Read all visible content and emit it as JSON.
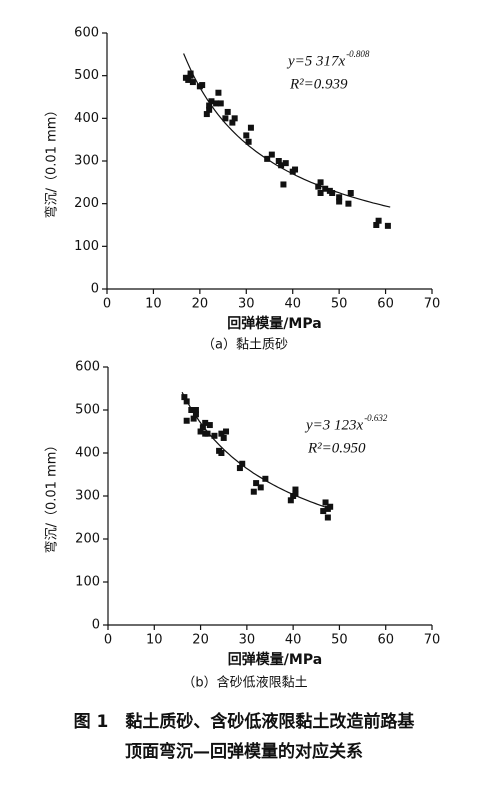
{
  "chart_data": [
    {
      "type": "scatter",
      "subtitle": "（a）黏土质砂",
      "xlabel": "回弹模量/MPa",
      "ylabel": "弯沉/（0.01 mm）",
      "xlim": [
        0,
        70
      ],
      "ylim": [
        0,
        600
      ],
      "xticks": [
        0,
        10,
        20,
        30,
        40,
        50,
        60,
        70
      ],
      "yticks": [
        0,
        100,
        200,
        300,
        400,
        500,
        600
      ],
      "color": "#111111",
      "x": [
        17,
        17.5,
        18,
        18,
        18.5,
        20,
        20.5,
        21.5,
        22,
        22,
        22.5,
        23.5,
        24,
        24.5,
        25.5,
        26,
        27,
        27.5,
        30,
        30.5,
        31,
        34.5,
        35.5,
        37,
        37.5,
        38,
        38.5,
        40,
        40.5,
        45.5,
        46,
        46,
        47,
        48,
        48.5,
        50,
        50,
        52,
        52.5,
        58,
        58.5,
        60.5
      ],
      "y": [
        495,
        490,
        500,
        505,
        485,
        475,
        478,
        410,
        420,
        430,
        440,
        435,
        460,
        435,
        400,
        415,
        390,
        400,
        360,
        345,
        378,
        305,
        315,
        300,
        290,
        245,
        295,
        275,
        280,
        240,
        225,
        250,
        235,
        230,
        225,
        215,
        205,
        200,
        225,
        150,
        160,
        148
      ],
      "fit": {
        "a": {
          "value": 5317,
          "label": "y=5 317x"
        },
        "b": {
          "value": -0.808,
          "label": "-0.808"
        },
        "r2": {
          "value": 0.939,
          "label": "R²=0.939"
        },
        "xrange": [
          16.5,
          61
        ]
      }
    },
    {
      "type": "scatter",
      "subtitle": "（b）含砂低液限黏土",
      "xlabel": "回弹模量/MPa",
      "ylabel": "弯沉/（0.01 mm）",
      "xlim": [
        0,
        70
      ],
      "ylim": [
        0,
        600
      ],
      "xticks": [
        0,
        10,
        20,
        30,
        40,
        50,
        60,
        70
      ],
      "yticks": [
        0,
        100,
        200,
        300,
        400,
        500,
        600
      ],
      "color": "#111111",
      "x": [
        16.5,
        17,
        17,
        18,
        18.5,
        19,
        19,
        20,
        20.5,
        21,
        21,
        21.5,
        22,
        23,
        24,
        24.5,
        24.5,
        25,
        25.5,
        28.5,
        29,
        31.5,
        32,
        33,
        34,
        39.5,
        40,
        40.5,
        40.5,
        46.5,
        47,
        47.5,
        47.5,
        48
      ],
      "y": [
        530,
        520,
        475,
        500,
        480,
        490,
        500,
        450,
        460,
        445,
        470,
        445,
        465,
        440,
        405,
        400,
        445,
        435,
        450,
        365,
        375,
        310,
        330,
        320,
        340,
        290,
        300,
        315,
        305,
        265,
        285,
        270,
        250,
        275
      ],
      "fit": {
        "a": {
          "value": 3123,
          "label": "y=3 123x"
        },
        "b": {
          "value": -0.632,
          "label": "-0.632"
        },
        "r2": {
          "value": 0.95,
          "label": "R²=0.950"
        },
        "xrange": [
          16,
          48
        ]
      }
    }
  ],
  "caption": [
    "图 1　黏土质砂、含砂低液限黏土改造前路基",
    "顶面弯沉—回弹模量的对应关系"
  ]
}
